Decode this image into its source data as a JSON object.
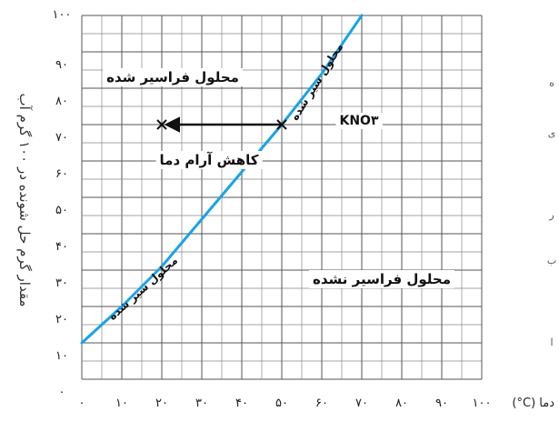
{
  "chart_data": {
    "type": "line",
    "title": "",
    "xlabel": "(°C) دما",
    "ylabel": "مقدار گرم حل شونده در ۱۰۰ گرم آب",
    "xlim": [
      0,
      100
    ],
    "ylim": [
      0,
      100
    ],
    "x_ticks": [
      "۰",
      "۱۰",
      "۲۰",
      "۳۰",
      "۴۰",
      "۵۰",
      "۶۰",
      "۷۰",
      "۸۰",
      "۹۰",
      "۱۰۰"
    ],
    "y_ticks": [
      "۰",
      "۱۰",
      "۲۰",
      "۳۰",
      "۴۰",
      "۵۰",
      "۶۰",
      "۷۰",
      "۸۰",
      "۹۰",
      "۱۰۰"
    ],
    "grid": true,
    "series": [
      {
        "name": "KNO۳",
        "color": "#1aa3e8",
        "x": [
          0,
          10,
          20,
          30,
          40,
          50,
          60,
          70
        ],
        "y": [
          10,
          20,
          31,
          44,
          57,
          70,
          84,
          100
        ]
      }
    ],
    "annotations": {
      "supersaturated": "محلول فراسیر شده",
      "unsaturated": "محلول فراسیر نشده",
      "saturated_upper": "محلول سیر شده",
      "saturated_lower": "محلول سیر شده",
      "cooling": "کاهش آرام دما",
      "compound": "KNO۳"
    },
    "cooling_arrow": {
      "from": [
        50,
        70
      ],
      "to": [
        20,
        70
      ]
    },
    "left_fragments": [
      "ه",
      "ی",
      "ر",
      "ب",
      "ا"
    ]
  }
}
